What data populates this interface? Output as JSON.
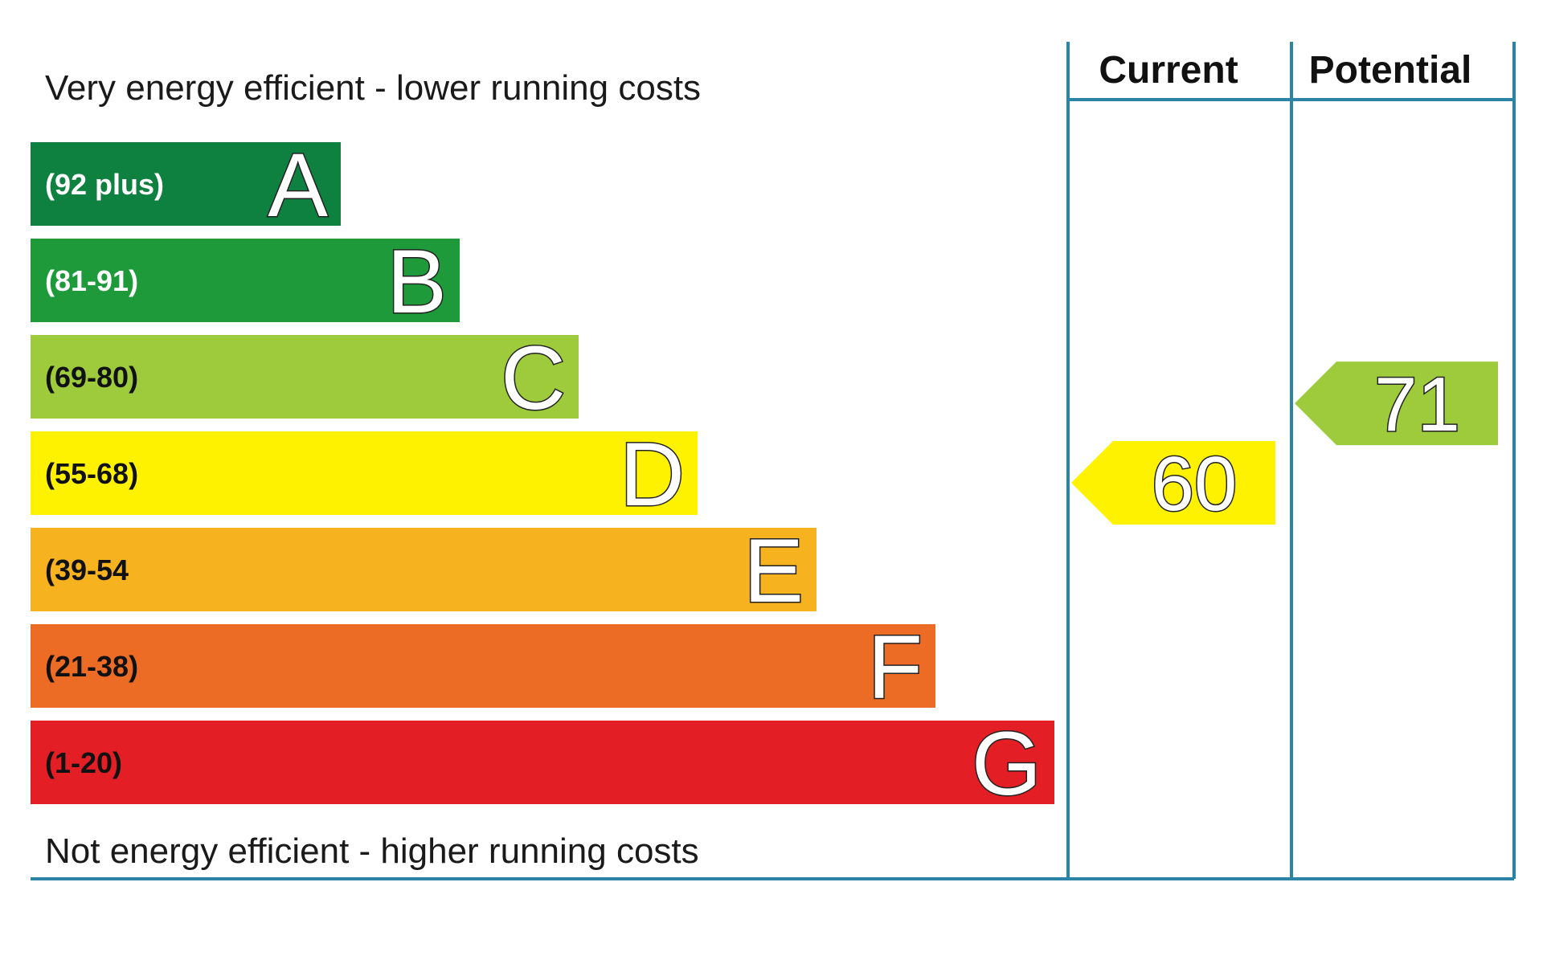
{
  "chart_data": {
    "type": "bar",
    "top_caption": "Very energy efficient - lower running costs",
    "bottom_caption": "Not energy efficient - higher running costs",
    "columns": [
      "Current",
      "Potential"
    ],
    "bands": [
      {
        "letter": "A",
        "range": "(92 plus)",
        "min": 92,
        "max": 100,
        "color": "#0e8040",
        "text_color": "#ffffff"
      },
      {
        "letter": "B",
        "range": "(81-91)",
        "min": 81,
        "max": 91,
        "color": "#1f9a3a",
        "text_color": "#ffffff"
      },
      {
        "letter": "C",
        "range": "(69-80)",
        "min": 69,
        "max": 80,
        "color": "#9dcb3c",
        "text_color": "#111111"
      },
      {
        "letter": "D",
        "range": "(55-68)",
        "min": 55,
        "max": 68,
        "color": "#fff200",
        "text_color": "#111111"
      },
      {
        "letter": "E",
        "range": "(39-54",
        "min": 39,
        "max": 54,
        "color": "#f6b21f",
        "text_color": "#111111"
      },
      {
        "letter": "F",
        "range": "(21-38)",
        "min": 21,
        "max": 38,
        "color": "#ec6b25",
        "text_color": "#111111"
      },
      {
        "letter": "G",
        "range": "(1-20)",
        "min": 1,
        "max": 20,
        "color": "#e31e25",
        "text_color": "#111111"
      }
    ],
    "ratings": {
      "current": {
        "value": 60,
        "band": "D",
        "color": "#fff200"
      },
      "potential": {
        "value": 71,
        "band": "C",
        "color": "#9dcb3c"
      }
    },
    "frame_color": "#2b84a6"
  }
}
